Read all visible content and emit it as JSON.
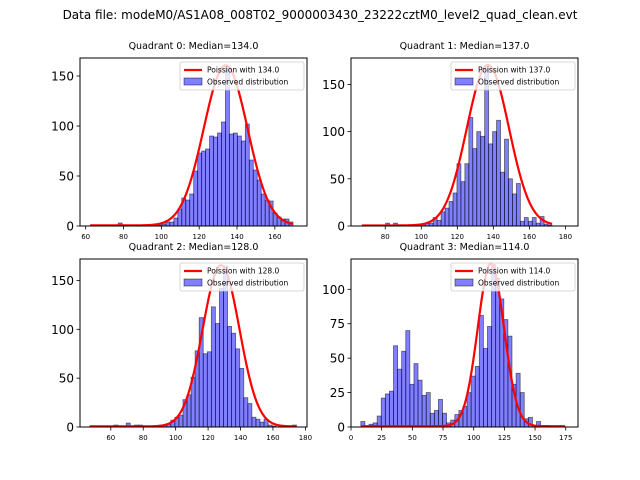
{
  "figure": {
    "suptitle": "Data file: modeM0/AS1A08_008T02_9000003430_23222cztM0_level2_quad_clean.evt"
  },
  "chart_data": [
    {
      "type": "bar",
      "title": "Quadrant 0: Median=134.0",
      "xlabel": "",
      "ylabel": "",
      "xlim": [
        57,
        177
      ],
      "ylim": [
        0,
        168
      ],
      "xticks": [
        60,
        80,
        100,
        120,
        140,
        160
      ],
      "yticks": [
        0,
        50,
        100,
        150
      ],
      "legend": {
        "position": "top-right",
        "entries": [
          "Poission with 134.0",
          "Observed distribution"
        ]
      },
      "poisson_mean": 134.0,
      "poisson_peak": 160,
      "bin_width": 2.1,
      "bins_start": 62.5,
      "values": [
        1,
        1,
        1,
        1,
        1,
        1,
        1,
        3,
        1,
        1,
        1,
        1,
        1,
        1,
        1,
        1,
        1,
        1,
        2,
        4,
        4,
        8,
        17,
        28,
        26,
        32,
        55,
        73,
        75,
        77,
        90,
        89,
        93,
        104,
        160,
        92,
        93,
        90,
        85,
        102,
        66,
        56,
        46,
        32,
        26,
        25,
        13,
        9,
        7,
        7,
        4
      ]
    },
    {
      "type": "bar",
      "title": "Quadrant 1: Median=137.0",
      "xlabel": "",
      "ylabel": "",
      "xlim": [
        61,
        187
      ],
      "ylim": [
        0,
        178
      ],
      "xticks": [
        80,
        100,
        120,
        140,
        160,
        180
      ],
      "yticks": [
        0,
        50,
        100,
        150
      ],
      "legend": {
        "position": "top-right",
        "entries": [
          "Poission with 137.0",
          "Observed distribution"
        ]
      },
      "poisson_mean": 137.0,
      "poisson_peak": 170,
      "bin_width": 2.2,
      "bins_start": 67,
      "values": [
        0,
        0,
        0,
        0,
        0,
        0,
        3,
        0,
        3,
        0,
        0,
        0,
        0,
        0,
        0,
        2,
        3,
        3,
        9,
        6,
        15,
        19,
        26,
        35,
        66,
        47,
        66,
        115,
        82,
        100,
        95,
        170,
        87,
        100,
        112,
        57,
        92,
        50,
        34,
        45,
        5,
        9,
        5,
        9,
        3,
        10,
        2,
        1
      ]
    },
    {
      "type": "bar",
      "title": "Quadrant 2: Median=128.0",
      "xlabel": "",
      "ylabel": "",
      "xlim": [
        41,
        181
      ],
      "ylim": [
        0,
        172
      ],
      "xticks": [
        60,
        80,
        100,
        120,
        140,
        160,
        180
      ],
      "yticks": [
        0,
        50,
        100,
        150
      ],
      "legend": {
        "position": "top-right",
        "entries": [
          "Poission with 128.0",
          "Observed distribution"
        ]
      },
      "poisson_mean": 128.0,
      "poisson_peak": 165,
      "bin_width": 2.5,
      "bins_start": 47,
      "values": [
        1,
        0,
        0,
        0,
        0,
        0,
        2,
        0,
        0,
        4,
        0,
        2,
        2,
        0,
        0,
        0,
        0,
        0,
        2,
        3,
        7,
        10,
        12,
        28,
        33,
        51,
        78,
        112,
        75,
        77,
        123,
        106,
        142,
        165,
        103,
        96,
        80,
        60,
        30,
        24,
        10,
        8,
        5,
        8,
        2,
        1,
        0,
        0,
        0,
        1,
        2
      ]
    },
    {
      "type": "bar",
      "title": "Quadrant 3: Median=114.0",
      "xlabel": "",
      "ylabel": "",
      "xlim": [
        0,
        185
      ],
      "ylim": [
        0,
        122
      ],
      "xticks": [
        0,
        25,
        50,
        75,
        100,
        125,
        150,
        175
      ],
      "yticks": [
        0,
        25,
        50,
        75,
        100
      ],
      "legend": {
        "position": "top-right",
        "entries": [
          "Poission with 114.0",
          "Observed distribution"
        ]
      },
      "poisson_mean": 114.0,
      "poisson_peak": 118,
      "bin_width": 3.33,
      "bins_start": 8,
      "values": [
        4,
        0,
        2,
        3,
        8,
        21,
        24,
        26,
        59,
        42,
        55,
        70,
        31,
        46,
        34,
        23,
        25,
        10,
        12,
        20,
        10,
        3,
        5,
        9,
        12,
        15,
        25,
        37,
        44,
        81,
        57,
        73,
        118,
        108,
        93,
        78,
        66,
        31,
        39,
        25,
        6,
        7,
        1,
        4,
        0,
        0,
        0,
        0,
        0,
        0
      ]
    }
  ]
}
